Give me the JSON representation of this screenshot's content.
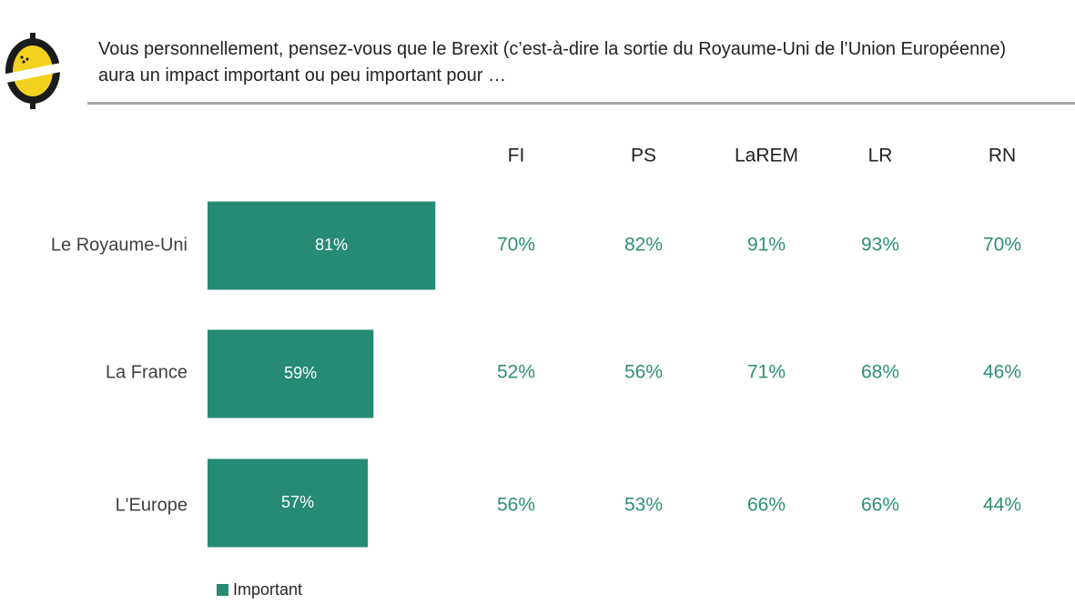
{
  "question": {
    "line1": "Vous personnellement, pensez-vous que le Brexit (c’est-à-dire la sortie du Royaume-Uni de l’Union Européenne)",
    "line2": "aura un impact important ou peu important pour …"
  },
  "colors": {
    "bar": "#278a74",
    "value_text": "#2f8f78",
    "logo_yellow": "#f2d21e",
    "logo_dark": "#1b1b1b"
  },
  "icons": {
    "logo": "lemon-logo-icon"
  },
  "chart_data": {
    "type": "bar",
    "orientation": "horizontal",
    "categories": [
      "Le Royaume-Uni",
      "La France",
      "L'Europe"
    ],
    "series": [
      {
        "name": "Important",
        "values": [
          81,
          59,
          57
        ]
      }
    ],
    "value_suffix": "%",
    "xlim": [
      0,
      100
    ],
    "grid": false,
    "legend_position": "bottom-left",
    "breakdown": {
      "columns": [
        "FI",
        "PS",
        "LaREM",
        "LR",
        "RN"
      ],
      "rows": [
        [
          70,
          82,
          91,
          93,
          70
        ],
        [
          52,
          56,
          71,
          68,
          46
        ],
        [
          56,
          53,
          66,
          66,
          44
        ]
      ]
    }
  }
}
